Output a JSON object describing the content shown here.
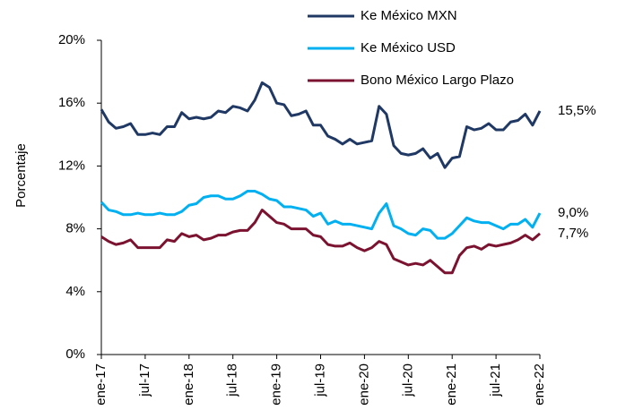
{
  "chart_data": {
    "type": "line",
    "y_label": "Porcentaje",
    "categories": [
      "ene-17",
      null,
      null,
      null,
      null,
      null,
      "jul-17",
      null,
      null,
      null,
      null,
      null,
      "ene-18",
      null,
      null,
      null,
      null,
      null,
      "jul-18",
      null,
      null,
      null,
      null,
      null,
      "ene-19",
      null,
      null,
      null,
      null,
      null,
      "jul-19",
      null,
      null,
      null,
      null,
      null,
      "ene-20",
      null,
      null,
      null,
      null,
      null,
      "jul-20",
      null,
      null,
      null,
      null,
      null,
      "ene-21",
      null,
      null,
      null,
      null,
      null,
      "jul-21",
      null,
      null,
      null,
      null,
      null,
      "ene-22"
    ],
    "series": [
      {
        "name": "Ke México MXN",
        "color": "#1f3864",
        "values": [
          15.6,
          14.8,
          14.4,
          14.5,
          14.7,
          14.0,
          14.0,
          14.1,
          14.0,
          14.5,
          14.5,
          15.4,
          15.0,
          15.1,
          15.0,
          15.1,
          15.5,
          15.4,
          15.8,
          15.7,
          15.5,
          16.2,
          17.3,
          17.0,
          16.0,
          15.9,
          15.2,
          15.3,
          15.5,
          14.6,
          14.6,
          13.9,
          13.7,
          13.4,
          13.7,
          13.4,
          13.5,
          13.6,
          15.8,
          15.3,
          13.3,
          12.8,
          12.7,
          12.8,
          13.1,
          12.5,
          12.8,
          11.9,
          12.5,
          12.6,
          14.5,
          14.3,
          14.4,
          14.7,
          14.3,
          14.3,
          14.8,
          14.9,
          15.3,
          14.6,
          15.5
        ],
        "value_labels": [
          null,
          null,
          null,
          null,
          null,
          null,
          null,
          null,
          null,
          null,
          null,
          null,
          null,
          null,
          null,
          null,
          null,
          null,
          null,
          null,
          null,
          null,
          null,
          null,
          null,
          null,
          null,
          null,
          null,
          null,
          null,
          null,
          null,
          null,
          null,
          null,
          null,
          null,
          null,
          null,
          null,
          null,
          null,
          null,
          null,
          null,
          null,
          null,
          null,
          null,
          null,
          null,
          null,
          null,
          null,
          null,
          null,
          null,
          null,
          null,
          "15,5%"
        ]
      },
      {
        "name": "Ke México USD",
        "color": "#00b0f0",
        "values": [
          9.7,
          9.2,
          9.1,
          8.9,
          8.9,
          9.0,
          8.9,
          8.9,
          9.0,
          8.9,
          8.9,
          9.1,
          9.5,
          9.6,
          10.0,
          10.1,
          10.1,
          9.9,
          9.9,
          10.1,
          10.4,
          10.4,
          10.2,
          9.9,
          9.8,
          9.4,
          9.4,
          9.3,
          9.2,
          8.8,
          9.0,
          8.3,
          8.5,
          8.3,
          8.3,
          8.2,
          8.1,
          8.0,
          9.0,
          9.6,
          8.2,
          8.0,
          7.7,
          7.6,
          8.0,
          7.9,
          7.4,
          7.4,
          7.7,
          8.2,
          8.7,
          8.5,
          8.4,
          8.4,
          8.2,
          8.0,
          8.3,
          8.3,
          8.6,
          8.1,
          9.0
        ],
        "value_labels": [
          null,
          null,
          null,
          null,
          null,
          null,
          null,
          null,
          null,
          null,
          null,
          null,
          null,
          null,
          null,
          null,
          null,
          null,
          null,
          null,
          null,
          null,
          null,
          null,
          null,
          null,
          null,
          null,
          null,
          null,
          null,
          null,
          null,
          null,
          null,
          null,
          null,
          null,
          null,
          null,
          null,
          null,
          null,
          null,
          null,
          null,
          null,
          null,
          null,
          null,
          null,
          null,
          null,
          null,
          null,
          null,
          null,
          null,
          null,
          null,
          "9,0%"
        ]
      },
      {
        "name": "Bono México Largo Plazo",
        "color": "#7b1230",
        "values": [
          7.5,
          7.2,
          7.0,
          7.1,
          7.3,
          6.8,
          6.8,
          6.8,
          6.8,
          7.3,
          7.2,
          7.7,
          7.5,
          7.6,
          7.3,
          7.4,
          7.6,
          7.6,
          7.8,
          7.9,
          7.9,
          8.4,
          9.2,
          8.8,
          8.4,
          8.3,
          8.0,
          8.0,
          8.0,
          7.6,
          7.5,
          7.0,
          6.9,
          6.9,
          7.1,
          6.8,
          6.6,
          6.8,
          7.2,
          7.0,
          6.1,
          5.9,
          5.7,
          5.8,
          5.7,
          6.0,
          5.6,
          5.2,
          5.2,
          6.3,
          6.8,
          6.9,
          6.7,
          7.0,
          6.9,
          7.0,
          7.1,
          7.3,
          7.6,
          7.3,
          7.7
        ],
        "value_labels": [
          null,
          null,
          null,
          null,
          null,
          null,
          null,
          null,
          null,
          null,
          null,
          null,
          null,
          null,
          null,
          null,
          null,
          null,
          null,
          null,
          null,
          null,
          null,
          null,
          null,
          null,
          null,
          null,
          null,
          null,
          null,
          null,
          null,
          null,
          null,
          null,
          null,
          null,
          null,
          null,
          null,
          null,
          null,
          null,
          null,
          null,
          null,
          null,
          null,
          null,
          null,
          null,
          null,
          null,
          null,
          null,
          null,
          null,
          null,
          null,
          "7,7%"
        ]
      }
    ],
    "ylim": [
      0,
      20
    ],
    "yticks": [
      {
        "value": 0,
        "label": "0%"
      },
      {
        "value": 4,
        "label": "4%"
      },
      {
        "value": 8,
        "label": "8%"
      },
      {
        "value": 12,
        "label": "12%"
      },
      {
        "value": 16,
        "label": "16%"
      },
      {
        "value": 20,
        "label": "20%"
      }
    ],
    "grid": false
  }
}
